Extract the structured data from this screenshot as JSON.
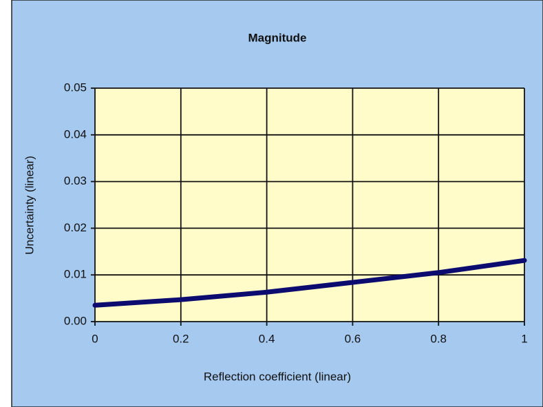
{
  "chart_data": {
    "type": "line",
    "title": "Magnitude",
    "x_label": "Reflection coefficient (linear)",
    "y_label": "Uncertainty (linear)",
    "x": [
      0,
      0.2,
      0.4,
      0.6,
      0.8,
      1
    ],
    "series": [
      {
        "name": "Magnitude",
        "color": "#0b0b70",
        "values": [
          0.0035,
          0.0047,
          0.0063,
          0.0084,
          0.0105,
          0.0131
        ]
      }
    ],
    "xlim": [
      0,
      1
    ],
    "xticks": [
      0,
      0.2,
      0.4,
      0.6,
      0.8,
      1
    ],
    "ylim": [
      0,
      0.05
    ],
    "yticks": [
      {
        "value": 0,
        "label": "0.00"
      },
      0.01,
      0.02,
      0.03,
      0.04,
      0.05
    ],
    "grid": true
  }
}
